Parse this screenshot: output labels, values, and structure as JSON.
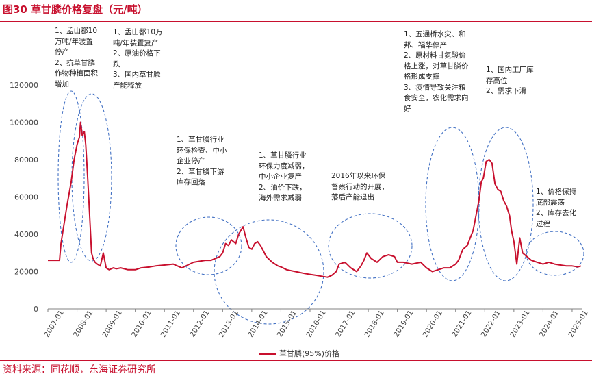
{
  "title": "图30  草甘膦价格复盘（元/吨）",
  "source": "资料来源：同花顺，东海证券研究所",
  "colors": {
    "series": "#c8102e",
    "ellipse": "#4472c4",
    "accent": "#c8102e"
  },
  "annotations": [
    [
      "1、孟山都10",
      "万吨/年装置",
      "停产",
      "2、抗草甘膦",
      "作物种植面积",
      "增加"
    ],
    [
      "1、孟山都10万",
      "吨/年装置复产",
      "2、原油价格下",
      "跌",
      "3、国内草甘膦",
      "产能释放"
    ],
    [
      "1、草甘膦行业",
      "环保检查、中小",
      "企业停产",
      "2、草甘膦下游",
      "库存回落"
    ],
    [
      "1、草甘膦行业",
      "环保力度减弱，",
      "中小企业复产",
      "2、油价下跌，",
      "海外需求减弱"
    ],
    [
      "2016年以来环保",
      "督察行动的开展，",
      "落后产能退出"
    ],
    [
      "1、五通桥水灾、和",
      "邦、福华停产",
      "2、原材料甘氨酸价",
      "格上涨，对草甘膦价",
      "格形成支撑",
      "3、疫情导致关注粮",
      "食安全，农化需求向",
      "好"
    ],
    [
      "1、国内工厂库",
      "存高位",
      "2、需求下滑"
    ],
    [
      "1、价格保持",
      "底部震荡",
      "2、库存去化",
      "过程"
    ]
  ],
  "chart_data": {
    "type": "line",
    "title": "",
    "xlabel": "",
    "ylabel": "",
    "ylim": [
      0,
      120000
    ],
    "yticks": [
      0,
      20000,
      40000,
      60000,
      80000,
      100000,
      120000
    ],
    "ytick_labels": [
      "0",
      "20000",
      "40000",
      "60000",
      "80000",
      "100000",
      "120000"
    ],
    "xlim": [
      2007.0,
      2025.33
    ],
    "xtick_labels": [
      "2007-01",
      "2008-01",
      "2009-01",
      "2010-01",
      "2011-01",
      "2012-01",
      "2013-01",
      "2014-01",
      "2015-01",
      "2016-01",
      "2017-01",
      "2018-01",
      "2019-01",
      "2020-01",
      "2021-01",
      "2022-01",
      "2023-01",
      "2024-01",
      "2025-01"
    ],
    "grid": false,
    "legend": "bottom",
    "series": [
      {
        "name": "草甘膦(95%)价格",
        "x": [
          2007.0,
          2007.4,
          2007.45,
          2007.55,
          2007.65,
          2007.8,
          2007.9,
          2008.0,
          2008.08,
          2008.12,
          2008.18,
          2008.25,
          2008.3,
          2008.35,
          2008.4,
          2008.45,
          2008.5,
          2008.55,
          2008.62,
          2008.7,
          2008.8,
          2008.9,
          2009.0,
          2009.1,
          2009.25,
          2009.35,
          2009.5,
          2009.75,
          2010.0,
          2010.2,
          2010.5,
          2010.7,
          2011.0,
          2011.3,
          2011.6,
          2012.0,
          2012.2,
          2012.4,
          2012.6,
          2012.75,
          2012.9,
          2013.0,
          2013.1,
          2013.2,
          2013.3,
          2013.45,
          2013.55,
          2013.7,
          2013.8,
          2013.9,
          2014.0,
          2014.1,
          2014.2,
          2014.3,
          2014.4,
          2014.5,
          2014.7,
          2014.9,
          2015.0,
          2015.2,
          2015.5,
          2015.8,
          2016.0,
          2016.2,
          2016.4,
          2016.6,
          2016.75,
          2016.9,
          2017.0,
          2017.2,
          2017.4,
          2017.6,
          2017.75,
          2017.85,
          2017.95,
          2018.1,
          2018.3,
          2018.5,
          2018.7,
          2018.9,
          2019.0,
          2019.2,
          2019.5,
          2019.8,
          2020.0,
          2020.2,
          2020.4,
          2020.6,
          2020.8,
          2021.0,
          2021.1,
          2021.25,
          2021.4,
          2021.5,
          2021.6,
          2021.7,
          2021.8,
          2021.88,
          2021.95,
          2022.05,
          2022.15,
          2022.25,
          2022.35,
          2022.45,
          2022.55,
          2022.65,
          2022.75,
          2022.85,
          2022.92,
          2023.0,
          2023.05,
          2023.1,
          2023.2,
          2023.3,
          2023.45,
          2023.6,
          2023.8,
          2024.0,
          2024.2,
          2024.4,
          2024.6,
          2024.8,
          2025.0,
          2025.2,
          2025.3
        ],
        "values": [
          26000,
          26000,
          35000,
          45000,
          55000,
          68000,
          80000,
          88000,
          92000,
          100000,
          93000,
          95000,
          88000,
          75000,
          60000,
          45000,
          30000,
          27000,
          25000,
          24000,
          23000,
          30000,
          22000,
          21000,
          22000,
          21500,
          22000,
          21000,
          21000,
          22000,
          22500,
          23000,
          23500,
          24000,
          22000,
          25000,
          25500,
          26000,
          26000,
          27000,
          28000,
          30000,
          35000,
          34000,
          37000,
          35000,
          40000,
          44000,
          38000,
          33000,
          32000,
          35000,
          36000,
          34000,
          31000,
          28000,
          25000,
          23000,
          22500,
          21000,
          20000,
          19000,
          18500,
          18000,
          17500,
          17000,
          18000,
          20000,
          24000,
          25000,
          22000,
          20000,
          23000,
          26000,
          30000,
          27000,
          25000,
          28000,
          29000,
          28000,
          25000,
          25000,
          24000,
          25000,
          22000,
          20000,
          21000,
          22000,
          22000,
          24000,
          26000,
          32000,
          34000,
          38000,
          42000,
          50000,
          58000,
          68000,
          70000,
          79000,
          80000,
          78000,
          67000,
          64000,
          63000,
          58000,
          55000,
          50000,
          42000,
          36000,
          30000,
          24000,
          38000,
          30000,
          28000,
          26000,
          25000,
          24000,
          25000,
          24000,
          23500,
          23000,
          23000,
          22500,
          23000
        ]
      }
    ]
  },
  "legend_label": "草甘膦(95%)价格"
}
